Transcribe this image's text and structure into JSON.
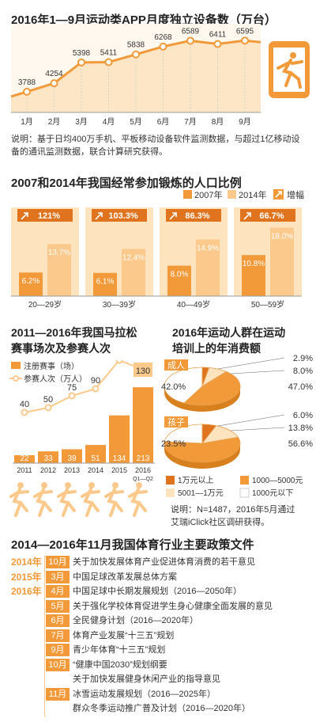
{
  "colors": {
    "orange": "#F29A3A",
    "dark_orange": "#E0741E",
    "pale_orange": "#FBC98B",
    "cream": "#FDE4BE",
    "light_band": "#FCE6C6",
    "text": "#333333"
  },
  "section1": {
    "title": "2016年1—9月运动类APP月度独立设备数（万台）",
    "note": "说明：基于日均400万手机、平板移动设备软件监测数据，与超过1亿移动设备的通讯监测数据，联合计算研究获得。",
    "icon": "tablet-runner-icon"
  },
  "section2": {
    "title": "2007和2014年我国经常参加锻炼的人口比例",
    "legend": [
      "2007年",
      "2014年",
      "增幅"
    ]
  },
  "section3": {
    "title_line1": "2011—2016年我国马拉松",
    "title_line2": "赛事场次及参赛人次",
    "legend": [
      "注册赛事（场）",
      "参赛人次（万人）"
    ],
    "icon": "runners-silhouette-icon"
  },
  "section4": {
    "title_line1": "2016年运动人群在运动",
    "title_line2": "培训上的年消费额",
    "groups": [
      "成人",
      "孩子"
    ],
    "legend": [
      "1万元以上",
      "1000—5000元",
      "5001—1万元",
      "1000元以下"
    ],
    "note_line1": "说明：N=1487，2016年5月通过",
    "note_line2": "艾瑞iClick社区调研获得。"
  },
  "section5": {
    "title": "2014—2016年11月我国体育行业主要政策文件",
    "rows": [
      {
        "year": "2014年",
        "month": "10月",
        "text": "关于加快发展体育产业促进体育消费的若干意见"
      },
      {
        "year": "2015年",
        "month": "3月",
        "text": "中国足球改革发展总体方案"
      },
      {
        "year": "2016年",
        "month": "4月",
        "text": "中国足球中长期发展规划（2016—2050年）"
      },
      {
        "year": "",
        "month": "5月",
        "text": "关于强化学校体育促进学生身心健康全面发展的意见"
      },
      {
        "year": "",
        "month": "6月",
        "text": "全民健身计划（2016—2020年）"
      },
      {
        "year": "",
        "month": "7月",
        "text": "体育产业发展“十三五”规划"
      },
      {
        "year": "",
        "month": "9月",
        "text": "青少年体育“十三五”规划"
      },
      {
        "year": "",
        "month": "10月",
        "text": "“健康中国2030”规划纲要"
      },
      {
        "year": "",
        "month": "",
        "text": "关于加快发展健身休闲产业的指导意见"
      },
      {
        "year": "",
        "month": "11月",
        "text": "冰雪运动发展规划（2016—2025年）"
      },
      {
        "year": "",
        "month": "",
        "text": "群众冬季运动推广普及计划（2016—2020年）"
      }
    ]
  },
  "chart_data": [
    {
      "type": "line",
      "title": "2016年1—9月运动类APP月度独立设备数（万台）",
      "categories": [
        "1月",
        "2月",
        "3月",
        "4月",
        "5月",
        "6月",
        "7月",
        "8月",
        "9月"
      ],
      "values": [
        3788,
        4254,
        5398,
        5411,
        5838,
        6268,
        6589,
        6411,
        6595
      ],
      "ylim": [
        3000,
        7000
      ]
    },
    {
      "type": "bar",
      "title": "2007和2014年我国经常参加锻炼的人口比例",
      "categories": [
        "20—29岁",
        "30—39岁",
        "40—49岁",
        "50—59岁"
      ],
      "series": [
        {
          "name": "2007年",
          "values": [
            6.2,
            6.1,
            8.0,
            10.8
          ],
          "labels": [
            "6.2%",
            "6.1%",
            "8.0%",
            "10.8%"
          ]
        },
        {
          "name": "2014年",
          "values": [
            13.7,
            12.4,
            14.9,
            18.0
          ],
          "labels": [
            "13.7%",
            "12.4%",
            "14.9%",
            "18.0%"
          ]
        }
      ],
      "growth": {
        "name": "增幅",
        "labels": [
          "121%",
          "103.3%",
          "86.3%",
          "66.7%"
        ]
      },
      "ylim": [
        0,
        20
      ]
    },
    {
      "type": "bar",
      "title": "2011—2016年我国马拉松赛事场次及参赛人次",
      "categories": [
        "2011",
        "2012",
        "2013",
        "2014",
        "2015",
        "2016"
      ],
      "category_sub": [
        "",
        "",
        "",
        "",
        "",
        "Q1—Q2"
      ],
      "series": [
        {
          "name": "注册赛事（场）",
          "type": "bar",
          "values": [
            22,
            33,
            39,
            51,
            134,
            213
          ]
        },
        {
          "name": "参赛人次（万人）",
          "type": "line",
          "values": [
            40,
            50,
            75,
            90,
            150,
            130
          ]
        }
      ]
    },
    {
      "type": "pie",
      "title": "2016年运动人群在运动培训上的年消费额",
      "groups": [
        {
          "name": "成人",
          "slices": [
            {
              "label": "1万元以上",
              "value": 2.9,
              "text": "2.9%"
            },
            {
              "label": "5001—1万元",
              "value": 8.0,
              "text": "8.0%"
            },
            {
              "label": "1000—5000元",
              "value": 47.0,
              "text": "47.0%"
            },
            {
              "label": "1000元以下",
              "value": 42.0,
              "text": "42.0%"
            }
          ]
        },
        {
          "name": "孩子",
          "slices": [
            {
              "label": "1万元以上",
              "value": 6.0,
              "text": "6.0%"
            },
            {
              "label": "5001—1万元",
              "value": 13.8,
              "text": "13.8%"
            },
            {
              "label": "1000—5000元",
              "value": 56.6,
              "text": "56.6%"
            },
            {
              "label": "1000元以下",
              "value": 23.5,
              "text": "23.5%"
            }
          ]
        }
      ]
    }
  ]
}
